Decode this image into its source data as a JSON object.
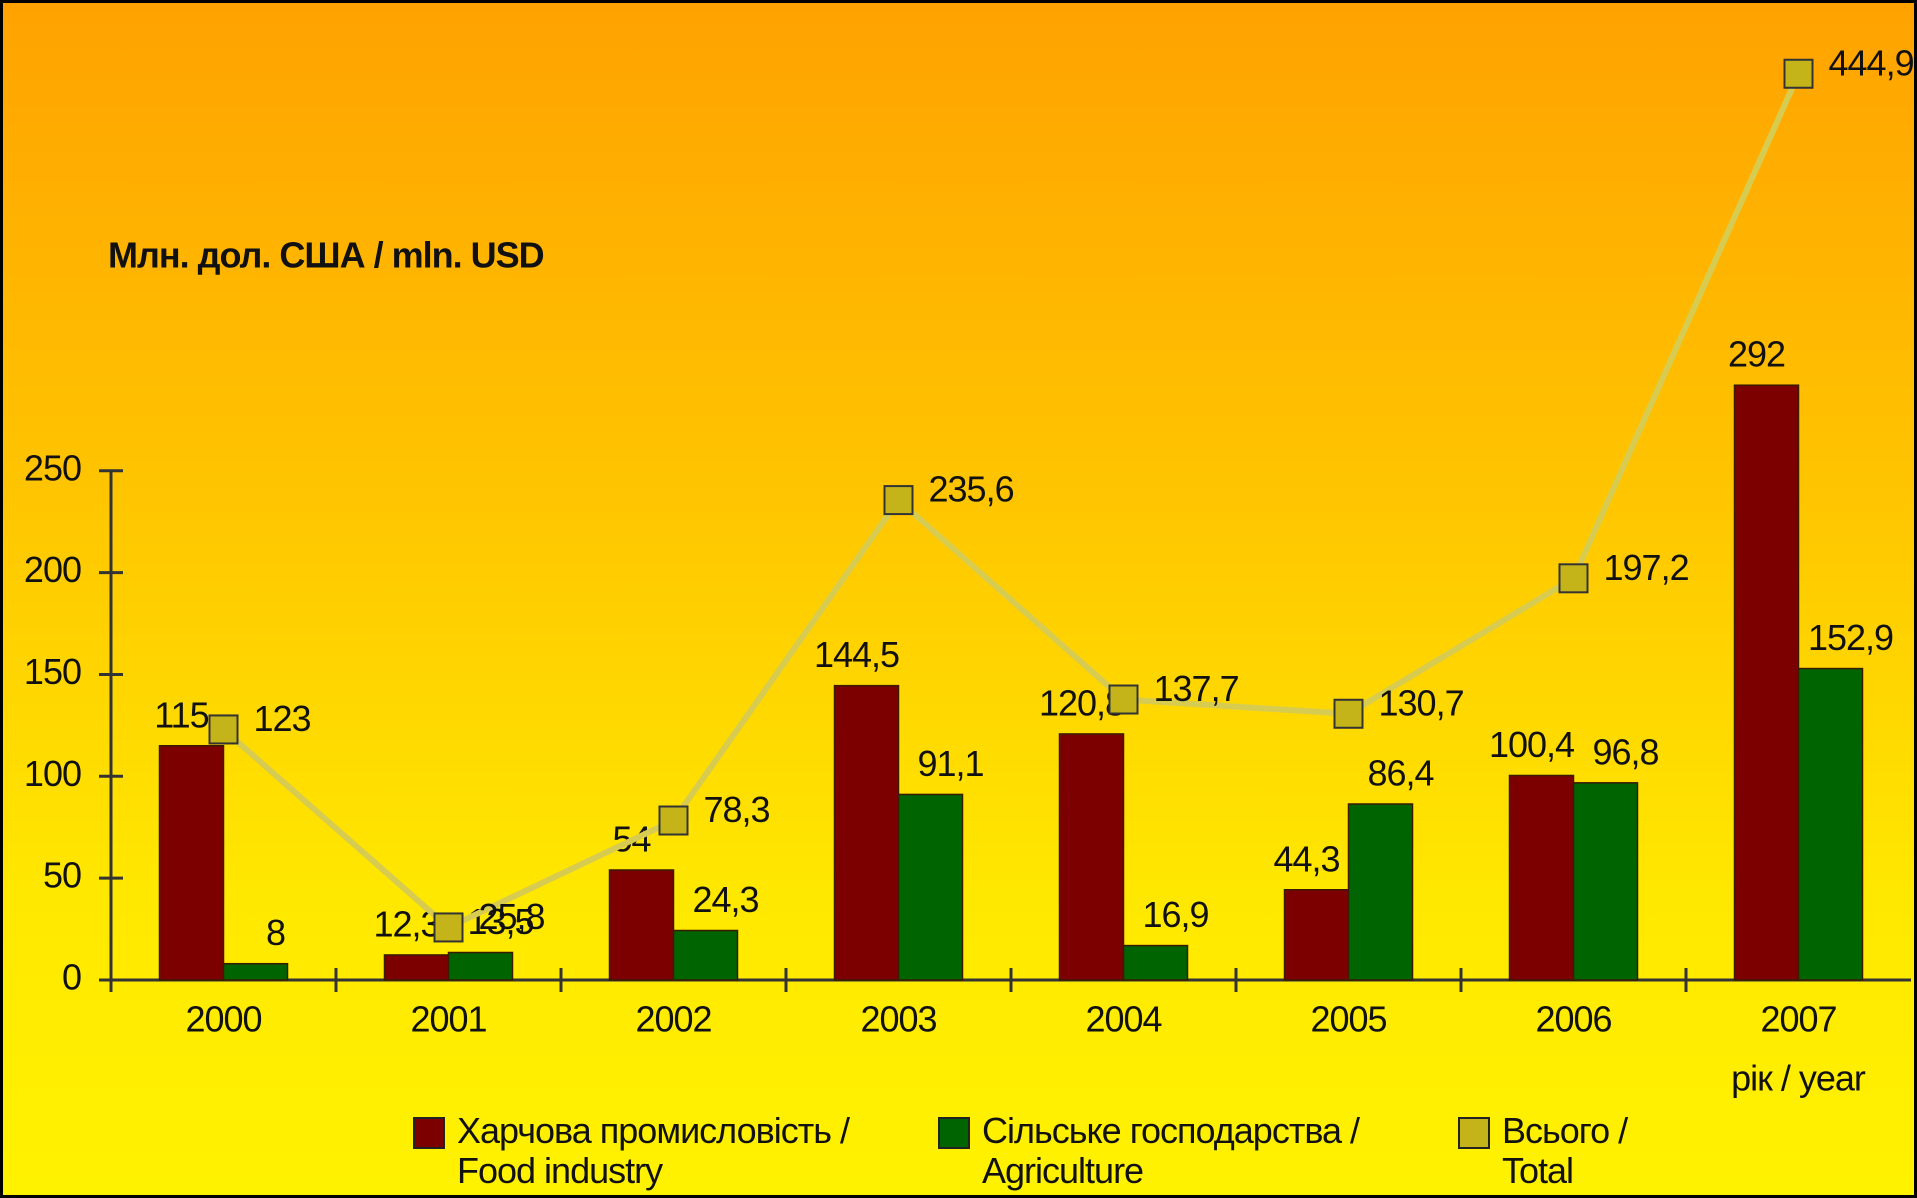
{
  "chart_data": {
    "type": "bar",
    "y_label": "Млн. дол. США / mln. USD",
    "x_label": "рік / year",
    "categories": [
      "2000",
      "2001",
      "2002",
      "2003",
      "2004",
      "2005",
      "2006",
      "2007"
    ],
    "series": [
      {
        "name": "Харчова промисловість / Food industry",
        "type": "bar",
        "color": "#7d0000",
        "values": [
          115,
          12.3,
          54,
          144.5,
          120.8,
          44.3,
          100.4,
          292
        ],
        "value_labels": [
          "115",
          "12,3",
          "54",
          "144,5",
          "120,8",
          "44,3",
          "100,4",
          "292"
        ]
      },
      {
        "name": "Сільське господарства / Agriculture",
        "type": "bar",
        "color": "#006400",
        "values": [
          8,
          13.5,
          24.3,
          91.1,
          16.9,
          86.4,
          96.8,
          152.9
        ],
        "value_labels": [
          "8",
          "13,5",
          "24,3",
          "91,1",
          "16,9",
          "86,4",
          "96,8",
          "152,9"
        ]
      },
      {
        "name": "Всього / Total",
        "type": "line",
        "color": "#c4b41a",
        "values": [
          123,
          25.8,
          78.3,
          235.6,
          137.7,
          130.7,
          197.2,
          444.9
        ],
        "value_labels": [
          "123",
          "25,8",
          "78,3",
          "235,6",
          "137,7",
          "130,7",
          "197,2",
          "444,9"
        ]
      }
    ],
    "ylim": [
      0,
      460
    ],
    "yticks": [
      0,
      50,
      100,
      150,
      200,
      250
    ],
    "grid": false
  }
}
